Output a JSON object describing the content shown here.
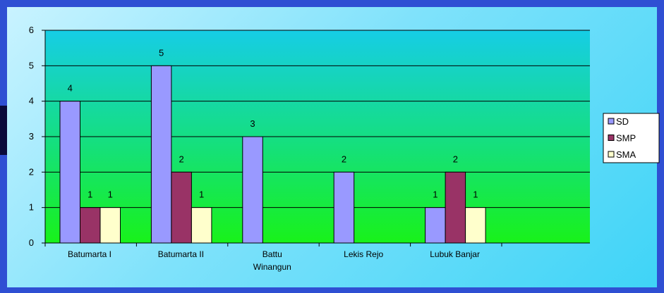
{
  "chart_data": {
    "type": "bar",
    "categories": [
      "Batumarta I",
      "Batumarta II",
      "Battu Winangun",
      "Lekis Rejo",
      "Lubuk Banjar"
    ],
    "category_label_lines": [
      [
        "Batumarta I"
      ],
      [
        "Batumarta II"
      ],
      [
        "Battu",
        "Winangun"
      ],
      [
        "Lekis Rejo"
      ],
      [
        "Lubuk Banjar"
      ]
    ],
    "series": [
      {
        "name": "SD",
        "values": [
          4,
          5,
          3,
          2,
          1
        ],
        "color": "#9999ff"
      },
      {
        "name": "SMP",
        "values": [
          1,
          2,
          null,
          null,
          2
        ],
        "color": "#993366"
      },
      {
        "name": "SMA",
        "values": [
          1,
          1,
          null,
          null,
          1
        ],
        "color": "#ffffcc"
      }
    ],
    "ylim": [
      0,
      6
    ],
    "yticks": [
      "0",
      "1",
      "2",
      "3",
      "4",
      "5",
      "6"
    ],
    "grid": true,
    "legend_position": "right",
    "data_labels": true,
    "plot_gradient": [
      "#16d0e0",
      "#15e07a",
      "#18f21a"
    ]
  }
}
